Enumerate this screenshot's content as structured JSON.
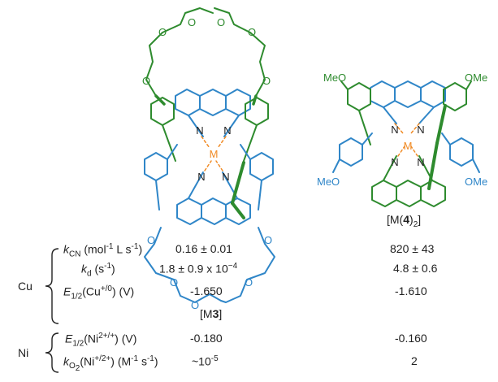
{
  "structures": {
    "left": {
      "metal": "M",
      "label_pre": "[M",
      "label_bold": "3",
      "label_post": "]"
    },
    "right": {
      "metal": "M",
      "label_pre": "[M(",
      "label_bold": "4",
      "label_post": ")",
      "label_sub": "2",
      "label_end": "]",
      "substituent": "MeO",
      "substituent_right": "OMe"
    },
    "atoms": {
      "oxygen": "O",
      "nitrogen": "N"
    }
  },
  "table": {
    "groups": [
      {
        "metal": "Cu"
      },
      {
        "metal": "Ni"
      }
    ],
    "rows": [
      {
        "name": "k_CN",
        "unit_text": "(mol",
        "v3": "0.16 ± 0.01",
        "v4": "820 ± 43"
      },
      {
        "name": "k_d",
        "v3": "1.8 ± 0.9 x 10",
        "v3_exp": "−4",
        "v4": "4.8 ± 0.6"
      },
      {
        "name": "E_1/2(Cu+/0)",
        "v3": "-1.650",
        "v4": "-1.610"
      },
      {
        "name": "E_1/2(Ni2+/+)",
        "v3": "-0.180",
        "v4": "-0.160"
      },
      {
        "name": "k_O2(Ni+/2+)",
        "v3": "~10",
        "v3_exp": "-5",
        "v4": "2"
      }
    ]
  },
  "colors": {
    "green": "#2e8b2e",
    "blue": "#2f86c8",
    "orange": "#f08a24",
    "text": "#222222"
  }
}
